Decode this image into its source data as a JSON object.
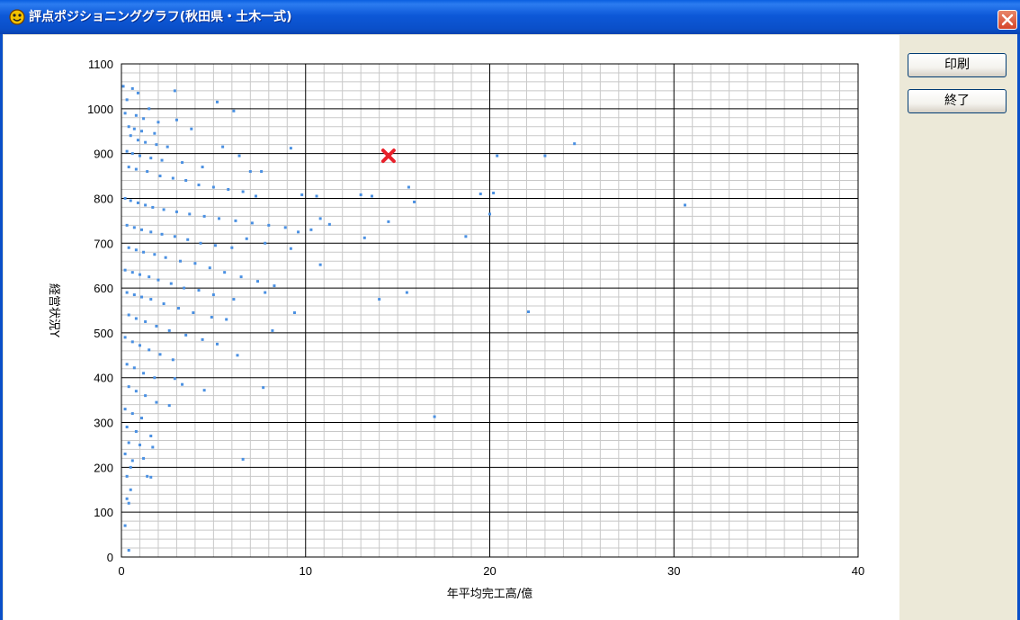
{
  "window": {
    "title": "評点ポジショニンググラフ(秋田県・土木一式)",
    "title_icon": "app-face-icon",
    "close_icon": "close-icon"
  },
  "buttons": {
    "print_label": "印刷",
    "exit_label": "終了"
  },
  "colors": {
    "titlebar": "#0A5FE0",
    "point": "#4A90E2",
    "marker": "#E8202A",
    "panel": "#ECE9D8"
  },
  "chart_data": {
    "type": "scatter",
    "title": "",
    "xlabel": "年平均完工高/億",
    "ylabel": "経営状況Y",
    "xlim": [
      0,
      40
    ],
    "ylim": [
      0,
      1100
    ],
    "x_ticks": [
      "0",
      "10",
      "20",
      "30",
      "40"
    ],
    "y_ticks": [
      "0",
      "100",
      "200",
      "300",
      "400",
      "500",
      "600",
      "700",
      "800",
      "900",
      "1000",
      "1100"
    ],
    "grid": true,
    "legend": "none",
    "highlight": {
      "x": 14.5,
      "y": 895
    },
    "series": [
      {
        "values": [
          [
            0.1,
            1050
          ],
          [
            0.3,
            1020
          ],
          [
            0.6,
            1045
          ],
          [
            0.9,
            1035
          ],
          [
            1.5,
            1000
          ],
          [
            2.9,
            1040
          ],
          [
            5.2,
            1015
          ],
          [
            6.1,
            995
          ],
          [
            0.2,
            990
          ],
          [
            0.8,
            985
          ],
          [
            1.2,
            978
          ],
          [
            2.0,
            970
          ],
          [
            0.4,
            960
          ],
          [
            0.7,
            955
          ],
          [
            1.1,
            950
          ],
          [
            1.8,
            945
          ],
          [
            3.0,
            975
          ],
          [
            3.8,
            955
          ],
          [
            0.5,
            940
          ],
          [
            0.9,
            930
          ],
          [
            1.3,
            925
          ],
          [
            1.9,
            920
          ],
          [
            2.5,
            915
          ],
          [
            5.5,
            915
          ],
          [
            6.4,
            895
          ],
          [
            9.2,
            912
          ],
          [
            0.3,
            905
          ],
          [
            0.6,
            900
          ],
          [
            1.0,
            895
          ],
          [
            1.6,
            890
          ],
          [
            2.2,
            885
          ],
          [
            3.3,
            880
          ],
          [
            4.4,
            870
          ],
          [
            7.0,
            860
          ],
          [
            7.6,
            860
          ],
          [
            20.4,
            895
          ],
          [
            23.0,
            895
          ],
          [
            24.6,
            922
          ],
          [
            0.4,
            870
          ],
          [
            0.8,
            865
          ],
          [
            1.4,
            860
          ],
          [
            2.1,
            850
          ],
          [
            2.8,
            845
          ],
          [
            3.5,
            840
          ],
          [
            4.2,
            830
          ],
          [
            5.0,
            825
          ],
          [
            5.8,
            820
          ],
          [
            6.6,
            815
          ],
          [
            7.3,
            805
          ],
          [
            9.8,
            808
          ],
          [
            10.6,
            805
          ],
          [
            13.0,
            808
          ],
          [
            13.6,
            805
          ],
          [
            15.6,
            825
          ],
          [
            15.9,
            792
          ],
          [
            19.5,
            810
          ],
          [
            20.2,
            812
          ],
          [
            0.2,
            800
          ],
          [
            0.5,
            795
          ],
          [
            0.9,
            790
          ],
          [
            1.3,
            785
          ],
          [
            1.7,
            780
          ],
          [
            2.3,
            775
          ],
          [
            3.0,
            770
          ],
          [
            3.7,
            765
          ],
          [
            4.5,
            760
          ],
          [
            5.3,
            755
          ],
          [
            6.2,
            750
          ],
          [
            7.1,
            745
          ],
          [
            8.0,
            740
          ],
          [
            8.9,
            735
          ],
          [
            9.6,
            725
          ],
          [
            10.3,
            730
          ],
          [
            10.8,
            755
          ],
          [
            11.3,
            742
          ],
          [
            14.5,
            748
          ],
          [
            20.0,
            765
          ],
          [
            30.6,
            785
          ],
          [
            0.3,
            740
          ],
          [
            0.7,
            735
          ],
          [
            1.1,
            730
          ],
          [
            1.6,
            725
          ],
          [
            2.2,
            720
          ],
          [
            2.9,
            715
          ],
          [
            3.6,
            708
          ],
          [
            4.3,
            700
          ],
          [
            5.1,
            695
          ],
          [
            6.0,
            690
          ],
          [
            6.8,
            710
          ],
          [
            7.8,
            700
          ],
          [
            9.2,
            688
          ],
          [
            13.2,
            712
          ],
          [
            18.7,
            715
          ],
          [
            0.4,
            690
          ],
          [
            0.8,
            685
          ],
          [
            1.2,
            680
          ],
          [
            1.8,
            675
          ],
          [
            2.4,
            668
          ],
          [
            3.2,
            660
          ],
          [
            4.0,
            655
          ],
          [
            4.8,
            645
          ],
          [
            5.6,
            635
          ],
          [
            6.5,
            625
          ],
          [
            7.4,
            615
          ],
          [
            8.3,
            605
          ],
          [
            10.8,
            652
          ],
          [
            0.2,
            640
          ],
          [
            0.6,
            635
          ],
          [
            1.0,
            630
          ],
          [
            1.5,
            625
          ],
          [
            2.0,
            618
          ],
          [
            2.7,
            610
          ],
          [
            3.4,
            600
          ],
          [
            4.2,
            595
          ],
          [
            5.0,
            585
          ],
          [
            6.1,
            575
          ],
          [
            7.8,
            590
          ],
          [
            14.0,
            575
          ],
          [
            15.5,
            590
          ],
          [
            0.3,
            590
          ],
          [
            0.7,
            585
          ],
          [
            1.1,
            580
          ],
          [
            1.6,
            575
          ],
          [
            2.3,
            565
          ],
          [
            3.1,
            555
          ],
          [
            3.9,
            545
          ],
          [
            4.9,
            535
          ],
          [
            5.7,
            530
          ],
          [
            9.4,
            545
          ],
          [
            22.1,
            547
          ],
          [
            0.4,
            540
          ],
          [
            0.8,
            532
          ],
          [
            1.3,
            525
          ],
          [
            1.9,
            515
          ],
          [
            2.6,
            505
          ],
          [
            3.5,
            495
          ],
          [
            4.4,
            485
          ],
          [
            5.2,
            475
          ],
          [
            6.3,
            450
          ],
          [
            8.2,
            505
          ],
          [
            0.2,
            490
          ],
          [
            0.6,
            480
          ],
          [
            1.0,
            472
          ],
          [
            1.5,
            462
          ],
          [
            2.1,
            452
          ],
          [
            2.8,
            440
          ],
          [
            0.3,
            430
          ],
          [
            0.7,
            422
          ],
          [
            1.2,
            410
          ],
          [
            1.8,
            400
          ],
          [
            2.9,
            398
          ],
          [
            3.3,
            385
          ],
          [
            4.5,
            372
          ],
          [
            7.7,
            378
          ],
          [
            17.0,
            313
          ],
          [
            0.4,
            380
          ],
          [
            0.8,
            370
          ],
          [
            1.3,
            360
          ],
          [
            1.9,
            345
          ],
          [
            2.6,
            338
          ],
          [
            0.2,
            330
          ],
          [
            0.6,
            320
          ],
          [
            1.1,
            310
          ],
          [
            0.3,
            290
          ],
          [
            0.8,
            280
          ],
          [
            1.6,
            270
          ],
          [
            0.4,
            255
          ],
          [
            1.0,
            250
          ],
          [
            1.7,
            245
          ],
          [
            0.2,
            230
          ],
          [
            0.6,
            215
          ],
          [
            1.2,
            220
          ],
          [
            0.5,
            200
          ],
          [
            1.4,
            180
          ],
          [
            0.3,
            180
          ],
          [
            1.6,
            178
          ],
          [
            0.5,
            150
          ],
          [
            0.3,
            130
          ],
          [
            0.4,
            120
          ],
          [
            6.6,
            218
          ],
          [
            0.2,
            70
          ],
          [
            0.4,
            15
          ]
        ]
      }
    ]
  }
}
